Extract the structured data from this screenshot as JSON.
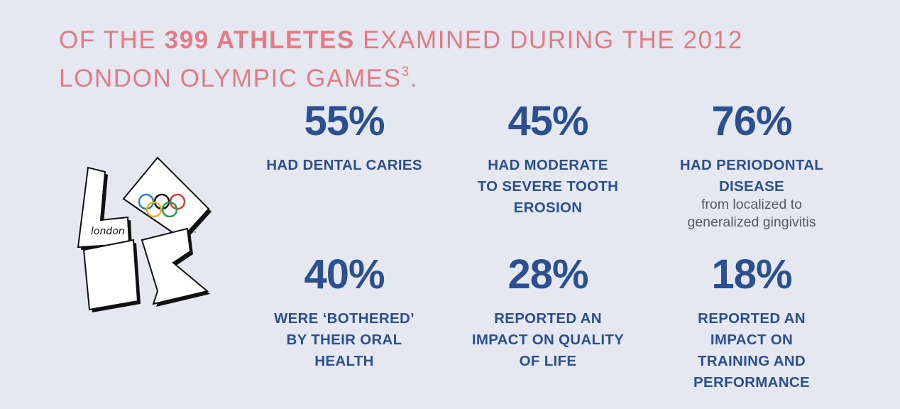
{
  "headline": {
    "part1": "OF THE ",
    "highlight": "399 ATHLETES",
    "part2": " EXAMINED DURING THE 2012 LONDON OLYMPIC GAMES",
    "superscript": "3",
    "end": "."
  },
  "logo": {
    "text": "london",
    "tm": "™"
  },
  "stats": [
    {
      "value": "55%",
      "label_lines": [
        "HAD DENTAL CARIES"
      ],
      "sub_lines": []
    },
    {
      "value": "45%",
      "label_lines": [
        "HAD MODERATE",
        "TO SEVERE TOOTH",
        "EROSION"
      ],
      "sub_lines": []
    },
    {
      "value": "76%",
      "label_lines": [
        "HAD PERIODONTAL",
        "DISEASE"
      ],
      "sub_lines": [
        "from localized to",
        "generalized gingivitis"
      ]
    },
    {
      "value": "40%",
      "label_lines": [
        "WERE ‘BOTHERED’",
        "BY THEIR ORAL",
        "HEALTH"
      ],
      "sub_lines": []
    },
    {
      "value": "28%",
      "label_lines": [
        "REPORTED AN",
        "IMPACT ON QUALITY",
        "OF LIFE"
      ],
      "sub_lines": []
    },
    {
      "value": "18%",
      "label_lines": [
        "REPORTED AN",
        "IMPACT ON",
        "TRAINING AND",
        "PERFORMANCE"
      ],
      "sub_lines": []
    }
  ],
  "colors": {
    "headline": "#e07c86",
    "stat": "#2c4f8f",
    "background": "#e5e8f0"
  }
}
